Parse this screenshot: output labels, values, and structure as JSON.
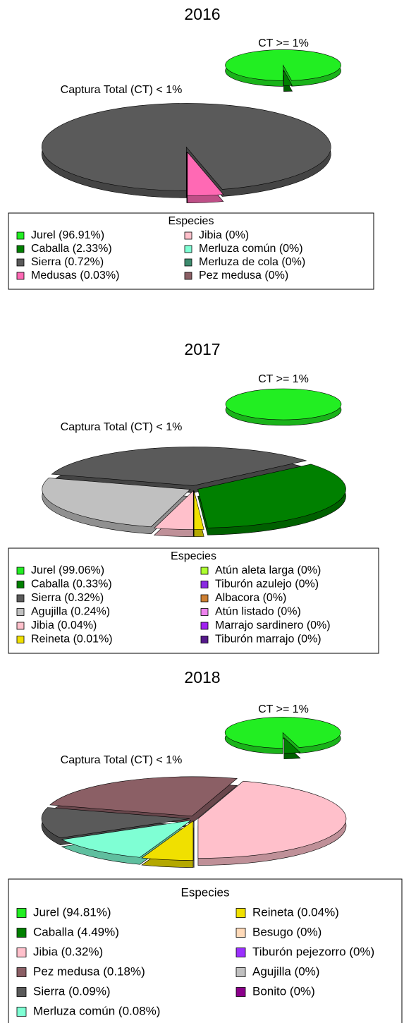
{
  "chart_data": [
    {
      "type": "pie",
      "title": "2016",
      "series": [
        {
          "name": "CT >= 1%",
          "values": [
            2.33,
            96.91
          ],
          "colors": [
            "#008000",
            "#22ee22"
          ]
        },
        {
          "name": "Captura Total (CT) < 1%",
          "values": [
            0.03,
            0.72,
            0,
            0,
            0,
            0
          ],
          "colors": [
            "#ff69b4",
            "#5a5a5a",
            "#ffc0cb",
            "#7fffd4",
            "#3d8b6e",
            "#8b5f65"
          ]
        }
      ],
      "legend": {
        "title": "Especies",
        "labels": [
          "Jurel (96.91%)",
          "Caballa (2.33%)",
          "Sierra (0.72%)",
          "Medusas (0.03%)",
          "Jibia (0%)",
          "Merluza común (0%)",
          "Merluza de cola (0%)",
          "Pez medusa (0%)"
        ],
        "colors": [
          "#22ee22",
          "#008000",
          "#5a5a5a",
          "#ff69b4",
          "#ffc0cb",
          "#7fffd4",
          "#3d8b6e",
          "#8b5f65"
        ]
      }
    },
    {
      "type": "pie",
      "title": "2017",
      "series": [
        {
          "name": "CT >= 1%",
          "values": [
            99.06
          ],
          "colors": [
            "#22ee22"
          ]
        },
        {
          "name": "Captura Total (CT) < 1%",
          "values": [
            0.01,
            0.33,
            0.32,
            0.24,
            0.04,
            0,
            0,
            0,
            0,
            0,
            0
          ],
          "colors": [
            "#f0e000",
            "#008000",
            "#5a5a5a",
            "#c0c0c0",
            "#ffc0cb",
            "#adff2f",
            "#8a2be2",
            "#cd7f32",
            "#ee82ee",
            "#a020f0",
            "#551a8b"
          ]
        }
      ],
      "legend": {
        "title": "Especies",
        "labels": [
          "Jurel (99.06%)",
          "Caballa (0.33%)",
          "Sierra (0.32%)",
          "Agujilla (0.24%)",
          "Jibia (0.04%)",
          "Reineta (0.01%)",
          "Atún aleta larga (0%)",
          "Tiburón azulejo (0%)",
          "Albacora (0%)",
          "Atún listado (0%)",
          "Marrajo sardinero (0%)",
          "Tiburón marrajo (0%)"
        ],
        "colors": [
          "#22ee22",
          "#008000",
          "#5a5a5a",
          "#c0c0c0",
          "#ffc0cb",
          "#f0e000",
          "#adff2f",
          "#8a2be2",
          "#cd7f32",
          "#ee82ee",
          "#a020f0",
          "#551a8b"
        ]
      }
    },
    {
      "type": "pie",
      "title": "2018",
      "series": [
        {
          "name": "CT >= 1%",
          "values": [
            4.49,
            94.81
          ],
          "colors": [
            "#008000",
            "#22ee22"
          ]
        },
        {
          "name": "Captura Total (CT) < 1%",
          "values": [
            0.32,
            0.18,
            0.09,
            0.08,
            0.04,
            0,
            0,
            0,
            0
          ],
          "colors": [
            "#ffc0cb",
            "#8b5f65",
            "#5a5a5a",
            "#7fffd4",
            "#f0e000",
            "#ffdab9",
            "#9b30ff",
            "#c0c0c0",
            "#8b008b"
          ]
        }
      ],
      "legend": {
        "title": "Especies",
        "labels": [
          "Jurel (94.81%)",
          "Caballa (4.49%)",
          "Jibia (0.32%)",
          "Pez medusa (0.18%)",
          "Sierra (0.09%)",
          "Merluza común (0.08%)",
          "Reineta (0.04%)",
          "Besugo (0%)",
          "Tiburón pejezorro (0%)",
          "Agujilla (0%)",
          "Bonito (0%)"
        ],
        "colors": [
          "#22ee22",
          "#008000",
          "#ffc0cb",
          "#8b5f65",
          "#5a5a5a",
          "#7fffd4",
          "#f0e000",
          "#ffdab9",
          "#9b30ff",
          "#c0c0c0",
          "#8b008b"
        ]
      }
    }
  ]
}
